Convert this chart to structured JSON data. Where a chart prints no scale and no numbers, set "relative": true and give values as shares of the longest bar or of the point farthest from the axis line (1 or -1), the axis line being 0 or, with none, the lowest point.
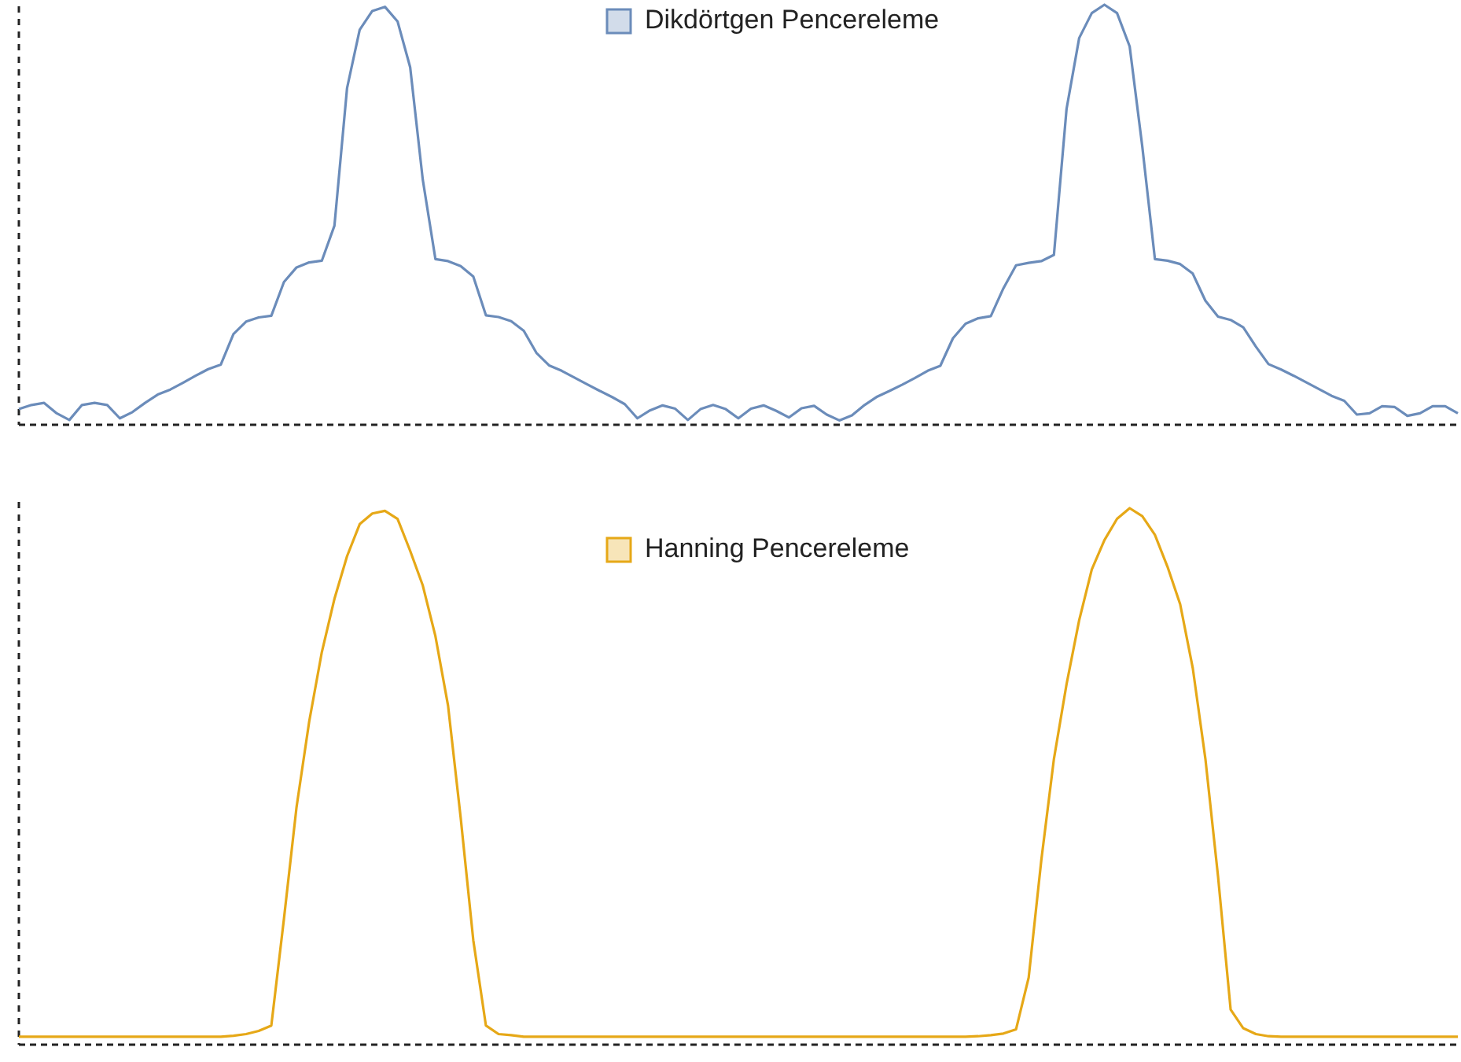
{
  "chart_data": [
    {
      "type": "line",
      "relative": true,
      "legend": "top",
      "marker": "none",
      "line_style": "solid",
      "categories": [
        null,
        null,
        null,
        null,
        null,
        null,
        null,
        null,
        null,
        null,
        null,
        null,
        null,
        null,
        null,
        null,
        null,
        null,
        null,
        null,
        null,
        null,
        null,
        null,
        null,
        null,
        null,
        null,
        null,
        null,
        null,
        null,
        null,
        null,
        null,
        null,
        null,
        null,
        null,
        null,
        null,
        null,
        null,
        null,
        null,
        null,
        null,
        null,
        null,
        null,
        null,
        null,
        null,
        null,
        null,
        null,
        null,
        null,
        null,
        null,
        null,
        null,
        null,
        null,
        null,
        null,
        null,
        null,
        null,
        null,
        null,
        null,
        null,
        null,
        null,
        null,
        null,
        null,
        null,
        null,
        null,
        null,
        null,
        null,
        null,
        null,
        null,
        null,
        null,
        null,
        null,
        null,
        null,
        null,
        null,
        null,
        null,
        null,
        null,
        null,
        null,
        null,
        null,
        null,
        null,
        null,
        null,
        null,
        null,
        null,
        null,
        null,
        null,
        null,
        null
      ],
      "series": [
        {
          "name": "Dikdörtgen Pencereleme",
          "color": "#6b8cba",
          "values": [
            0.03,
            0.04,
            0.045,
            0.02,
            0.004,
            0.04,
            0.045,
            0.04,
            0.008,
            0.023,
            0.045,
            0.065,
            0.077,
            0.093,
            0.11,
            0.126,
            0.137,
            0.21,
            0.24,
            0.25,
            0.254,
            0.335,
            0.37,
            0.382,
            0.386,
            0.47,
            0.8,
            0.94,
            0.985,
            0.995,
            0.96,
            0.85,
            0.58,
            0.39,
            0.385,
            0.373,
            0.348,
            0.255,
            0.251,
            0.241,
            0.218,
            0.165,
            0.135,
            0.122,
            0.106,
            0.09,
            0.074,
            0.059,
            0.042,
            0.008,
            0.027,
            0.039,
            0.031,
            0.004,
            0.03,
            0.04,
            0.03,
            0.008,
            0.031,
            0.039,
            0.026,
            0.01,
            0.032,
            0.038,
            0.017,
            0.003,
            0.015,
            0.04,
            0.06,
            0.074,
            0.089,
            0.105,
            0.122,
            0.134,
            0.2,
            0.235,
            0.248,
            0.253,
            0.32,
            0.375,
            0.381,
            0.385,
            0.4,
            0.75,
            0.92,
            0.98,
            1,
            0.98,
            0.9,
            0.66,
            0.39,
            0.386,
            0.378,
            0.355,
            0.29,
            0.252,
            0.244,
            0.226,
            0.18,
            0.138,
            0.125,
            0.11,
            0.094,
            0.078,
            0.062,
            0.05,
            0.017,
            0.02,
            0.037,
            0.035,
            0.014,
            0.02,
            0.037,
            0.037,
            0.02
          ]
        }
      ]
    },
    {
      "type": "line",
      "relative": true,
      "legend": "top",
      "marker": "none",
      "line_style": "solid",
      "categories": [
        null,
        null,
        null,
        null,
        null,
        null,
        null,
        null,
        null,
        null,
        null,
        null,
        null,
        null,
        null,
        null,
        null,
        null,
        null,
        null,
        null,
        null,
        null,
        null,
        null,
        null,
        null,
        null,
        null,
        null,
        null,
        null,
        null,
        null,
        null,
        null,
        null,
        null,
        null,
        null,
        null,
        null,
        null,
        null,
        null,
        null,
        null,
        null,
        null,
        null,
        null,
        null,
        null,
        null,
        null,
        null,
        null,
        null,
        null,
        null,
        null,
        null,
        null,
        null,
        null,
        null,
        null,
        null,
        null,
        null,
        null,
        null,
        null,
        null,
        null,
        null,
        null,
        null,
        null,
        null,
        null,
        null,
        null,
        null,
        null,
        null,
        null,
        null,
        null,
        null,
        null,
        null,
        null,
        null,
        null,
        null,
        null,
        null,
        null,
        null,
        null,
        null,
        null,
        null,
        null,
        null,
        null,
        null,
        null,
        null,
        null,
        null,
        null,
        null,
        null
      ],
      "series": [
        {
          "name": "Hanning Pencereleme",
          "color": "#e6a817",
          "values": [
            0.009,
            0.009,
            0.009,
            0.009,
            0.009,
            0.009,
            0.009,
            0.009,
            0.009,
            0.009,
            0.009,
            0.009,
            0.009,
            0.009,
            0.009,
            0.009,
            0.009,
            0.011,
            0.014,
            0.02,
            0.03,
            0.23,
            0.44,
            0.6,
            0.73,
            0.83,
            0.91,
            0.97,
            0.99,
            0.995,
            0.98,
            0.92,
            0.855,
            0.76,
            0.63,
            0.42,
            0.19,
            0.03,
            0.014,
            0.012,
            0.009,
            0.009,
            0.009,
            0.009,
            0.009,
            0.009,
            0.009,
            0.009,
            0.009,
            0.009,
            0.009,
            0.009,
            0.009,
            0.009,
            0.009,
            0.009,
            0.009,
            0.009,
            0.009,
            0.009,
            0.009,
            0.009,
            0.009,
            0.009,
            0.009,
            0.009,
            0.009,
            0.009,
            0.009,
            0.009,
            0.009,
            0.009,
            0.009,
            0.009,
            0.009,
            0.009,
            0.01,
            0.012,
            0.015,
            0.023,
            0.12,
            0.34,
            0.53,
            0.67,
            0.79,
            0.885,
            0.94,
            0.98,
            1,
            0.985,
            0.95,
            0.89,
            0.82,
            0.7,
            0.53,
            0.31,
            0.06,
            0.025,
            0.014,
            0.01,
            0.009,
            0.009,
            0.009,
            0.009,
            0.009,
            0.009,
            0.009,
            0.009,
            0.009,
            0.009,
            0.009,
            0.009,
            0.009,
            0.009,
            0.009
          ]
        }
      ]
    }
  ]
}
